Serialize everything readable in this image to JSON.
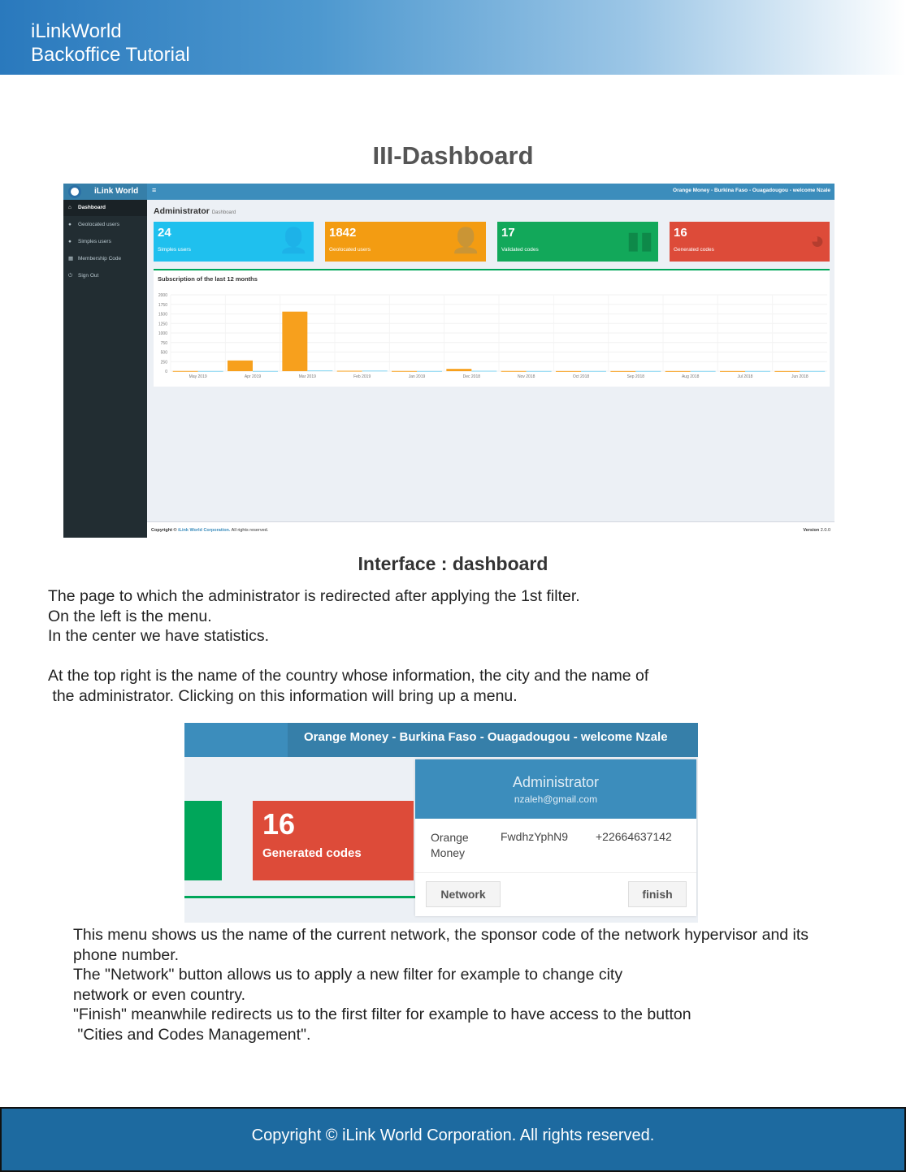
{
  "header": {
    "line1": "iLinkWorld",
    "line2": "Backoffice Tutorial"
  },
  "section_title": "III-Dashboard",
  "dashboard": {
    "brand": "iLink World",
    "menu_icon": "≡",
    "topbar_info": "Orange Money - Burkina Faso - Ouagadougou - welcome Nzale",
    "sidebar": [
      {
        "label": "Dashboard",
        "icon": "home-icon"
      },
      {
        "label": "Geolocated users",
        "icon": "users-icon"
      },
      {
        "label": "Simples users",
        "icon": "users-icon"
      },
      {
        "label": "Membership Code",
        "icon": "table-icon"
      },
      {
        "label": "Sign Out",
        "icon": "power-icon"
      }
    ],
    "page_title": "Administrator",
    "page_subtitle": "Dashboard",
    "cards": [
      {
        "value": "24",
        "label": "Simples users",
        "color": "#1fc0ee",
        "icon": "user-plus-icon"
      },
      {
        "value": "1842",
        "label": "Geolocated users",
        "color": "#f39c12",
        "icon": "user-plus-icon"
      },
      {
        "value": "17",
        "label": "Validated codes",
        "color": "#12a85a",
        "icon": "bar-chart-icon"
      },
      {
        "value": "16",
        "label": "Generated codes",
        "color": "#dd4b39",
        "icon": "pie-chart-icon"
      }
    ],
    "footer": {
      "prefix": "Copyright © ",
      "company": "iLink World Corporation.",
      "suffix": " All rights reserved.",
      "version_label": "Version",
      "version": "2.0.0"
    }
  },
  "chart_data": {
    "type": "bar",
    "title": "Subscription of the last 12 months",
    "categories": [
      "May 2019",
      "Apr 2019",
      "Mar 2019",
      "Feb 2019",
      "Jan 2019",
      "Dec 2018",
      "Nov 2018",
      "Oct 2018",
      "Sep 2018",
      "Aug 2018",
      "Jul 2018",
      "Jun 2018"
    ],
    "series": [
      {
        "color": "#f7a01d",
        "values": [
          5,
          280,
          1560,
          10,
          5,
          60,
          5,
          3,
          3,
          3,
          3,
          3
        ]
      },
      {
        "color": "#7fd3f2",
        "values": [
          5,
          5,
          20,
          15,
          5,
          10,
          5,
          5,
          5,
          5,
          5,
          5
        ]
      }
    ],
    "ylim": [
      0,
      2000
    ],
    "yticks": [
      0,
      250,
      500,
      750,
      1000,
      1250,
      1500,
      1750,
      2000
    ],
    "grid": true
  },
  "caption": "Interface : dashboard",
  "paragraph1": [
    "The page to which the administrator is redirected after applying the 1st filter.",
    "On the left is the menu.",
    "In the center we have statistics.",
    "",
    "At the top right is the name of the country whose information, the city and the name of",
    " the administrator. Clicking on this information will bring up a menu."
  ],
  "zoom": {
    "topbar_info": "Orange Money - Burkina Faso - Ouagadougou - welcome Nzale",
    "card_value": "16",
    "card_label": "Generated codes",
    "role": "Administrator",
    "email": "nzaleh@gmail.com",
    "network": "Orange Money",
    "sponsor_code": "FwdhzYphN9",
    "phone": "+22664637142",
    "network_button": "Network",
    "finish_button": "finish"
  },
  "paragraph2": [
    "This menu shows us the name of the current network, the sponsor code of the network hypervisor and its",
    "phone number.",
    "The \"Network\" button allows us to apply a new filter for example to change city",
    "network or even country.",
    "\"Finish\" meanwhile redirects us to the first filter for example to have access to the button",
    " \"Cities and Codes Management\"."
  ],
  "page_footer": "Copyright © iLink World Corporation. All rights reserved."
}
